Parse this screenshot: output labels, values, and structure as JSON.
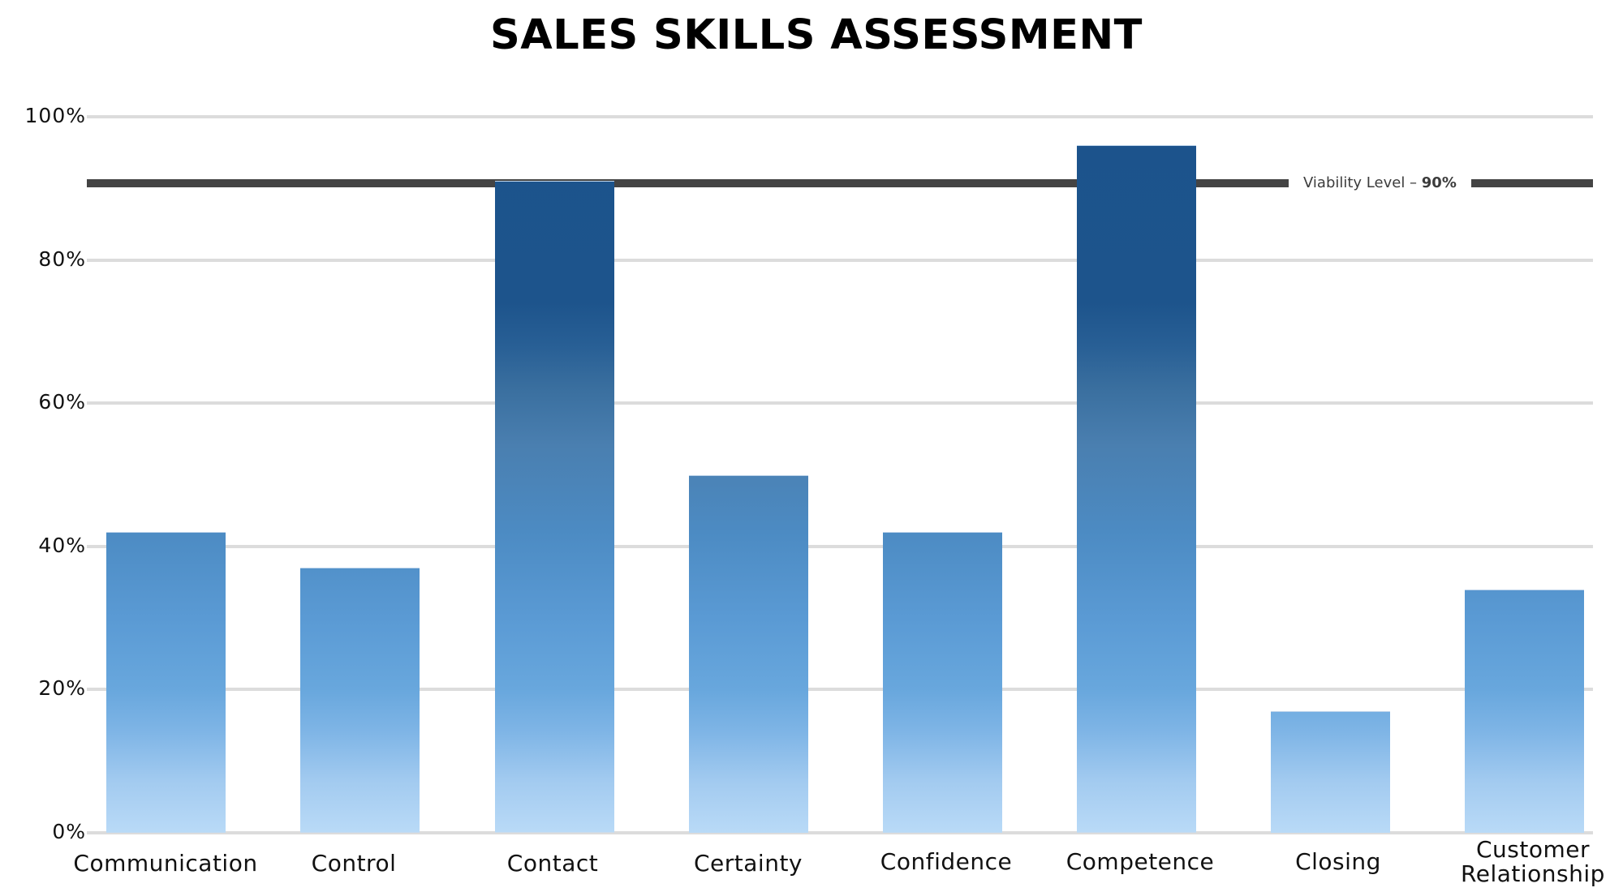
{
  "title": "SALES SKILLS ASSESSMENT",
  "y_axis": {
    "ticks": [
      "100%",
      "80%",
      "60%",
      "40%",
      "20%",
      "0%"
    ]
  },
  "viability": {
    "label_text": "Viability Level – ",
    "label_value": "90%",
    "value": 90,
    "color": "#444444"
  },
  "categories": [
    {
      "label": "Communication",
      "value": 42
    },
    {
      "label": "Control",
      "value": 37
    },
    {
      "label": "Contact",
      "value": 91
    },
    {
      "label": "Certainty",
      "value": 50
    },
    {
      "label": "Confidence",
      "value": 42
    },
    {
      "label": "Competence",
      "value": 96
    },
    {
      "label": "Closing",
      "value": 17
    },
    {
      "label": "Customer Relationship",
      "line1": "Customer",
      "line2": "Relationship",
      "value": 34
    }
  ],
  "colors": {
    "bar_top": "#1c538c",
    "bar_mid": "#4a80b0",
    "bar_low": "#68a7dd",
    "bar_bottom": "#b9daf7",
    "gridline": "#dcdcdc"
  },
  "chart_data": {
    "type": "bar",
    "title": "SALES SKILLS ASSESSMENT",
    "categories": [
      "Communication",
      "Control",
      "Contact",
      "Certainty",
      "Confidence",
      "Competence",
      "Closing",
      "Customer Relationship"
    ],
    "values": [
      42,
      37,
      91,
      50,
      42,
      96,
      17,
      34
    ],
    "xlabel": "",
    "ylabel": "",
    "ylim": [
      0,
      100
    ],
    "yticks": [
      "0%",
      "20%",
      "40%",
      "60%",
      "80%",
      "100%"
    ],
    "grid": true,
    "legend": null,
    "annotations": [
      {
        "type": "hline",
        "y": 90,
        "label": "Viability Level – 90%"
      }
    ]
  }
}
